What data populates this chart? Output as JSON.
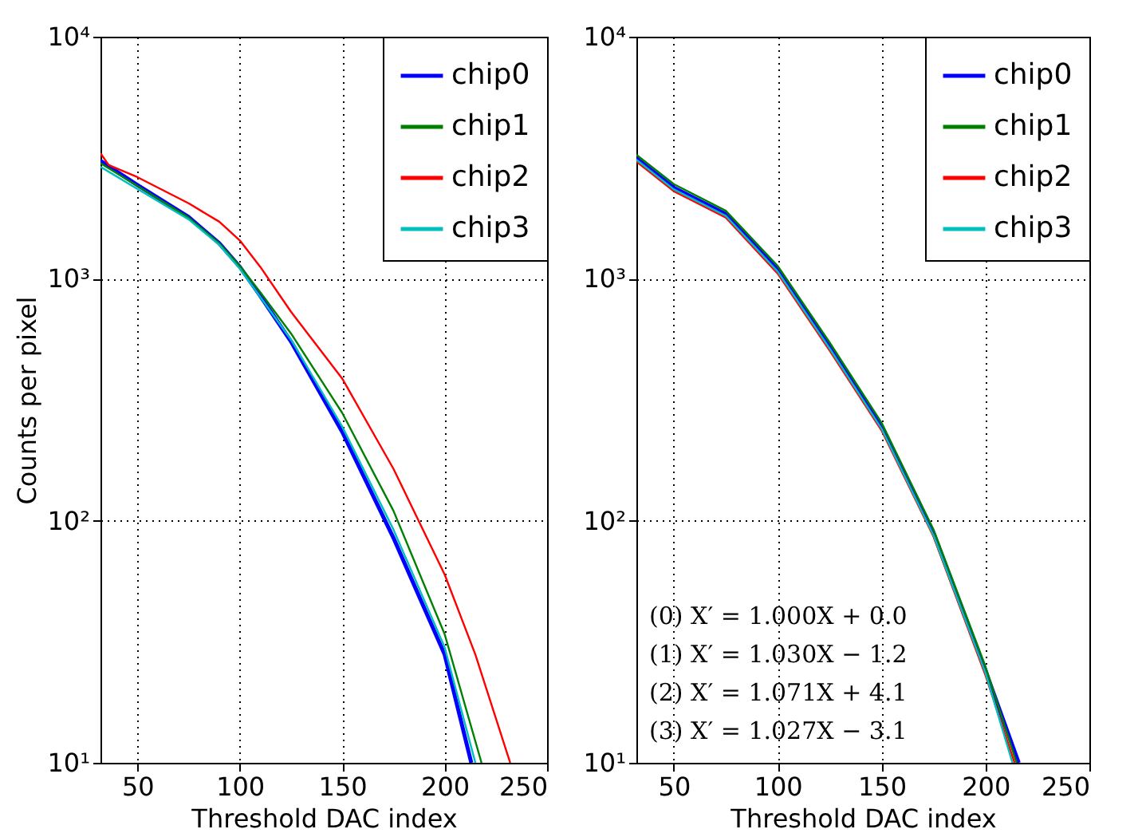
{
  "chart_data": [
    {
      "type": "line",
      "xlabel": "Threshold DAC index",
      "ylabel": "Counts per pixel",
      "log": "y",
      "grid": true,
      "legend": "top right",
      "xlim": [
        32,
        250
      ],
      "xticks": [
        50,
        100,
        150,
        200,
        250
      ],
      "ylim": [
        10,
        10000
      ],
      "yticks": [
        {
          "value": 10,
          "label": "10¹"
        },
        {
          "value": 100,
          "label": "10²"
        },
        {
          "value": 1000,
          "label": "10³"
        },
        {
          "value": 10000,
          "label": "10⁴"
        }
      ],
      "series": [
        {
          "name": "chip0",
          "color": "#0000ff",
          "x": [
            32,
            50,
            75,
            90,
            100,
            110,
            125,
            150,
            175,
            200,
            213
          ],
          "values": [
            3070,
            2440,
            1800,
            1400,
            1120,
            850,
            550,
            233,
            85,
            28,
            10
          ]
        },
        {
          "name": "chip1",
          "color": "#008000",
          "x": [
            32,
            50,
            75,
            90,
            100,
            110,
            125,
            150,
            175,
            200,
            218
          ],
          "values": [
            3000,
            2420,
            1790,
            1400,
            1130,
            880,
            594,
            279,
            110,
            34,
            10
          ]
        },
        {
          "name": "chip2",
          "color": "#ff0000",
          "x": [
            32,
            36,
            50,
            75,
            90,
            100,
            110,
            125,
            150,
            175,
            200,
            215,
            232
          ],
          "values": [
            3300,
            2950,
            2630,
            2050,
            1720,
            1440,
            1120,
            730,
            387,
            164,
            60,
            28,
            10
          ]
        },
        {
          "name": "chip3",
          "color": "#00bfbf",
          "x": [
            32,
            50,
            75,
            90,
            100,
            110,
            125,
            150,
            175,
            200,
            215
          ],
          "values": [
            2900,
            2350,
            1760,
            1380,
            1100,
            840,
            560,
            245,
            92,
            30,
            10
          ]
        }
      ]
    },
    {
      "type": "line",
      "xlabel": "Threshold DAC index",
      "log": "y",
      "grid": true,
      "legend": "top right",
      "xlim": [
        32,
        250
      ],
      "xticks": [
        50,
        100,
        150,
        200,
        250
      ],
      "ylim": [
        10,
        10000
      ],
      "yticks": [
        {
          "value": 10,
          "label": "10¹"
        },
        {
          "value": 100,
          "label": "10²"
        },
        {
          "value": 1000,
          "label": "10³"
        },
        {
          "value": 10000,
          "label": "10⁴"
        }
      ],
      "annotations": [
        "(0) X′ = 1.000X + 0.0",
        "(1) X′ = 1.030X − 1.2",
        "(2) X′ = 1.071X + 4.1",
        "(3) X′ = 1.027X − 3.1"
      ],
      "series": [
        {
          "name": "chip0",
          "color": "#0000ff",
          "x": [
            32,
            50,
            75,
            100,
            125,
            150,
            175,
            200,
            216
          ],
          "values": [
            3150,
            2380,
            1850,
            1090,
            525,
            245,
            89,
            24,
            10
          ]
        },
        {
          "name": "chip1",
          "color": "#008000",
          "x": [
            32,
            50,
            75,
            100,
            125,
            150,
            175,
            200,
            215
          ],
          "values": [
            3250,
            2460,
            1910,
            1130,
            545,
            254,
            92,
            25,
            10
          ]
        },
        {
          "name": "chip2",
          "color": "#ff0000",
          "x": [
            32,
            50,
            75,
            100,
            125,
            150,
            175,
            200,
            214
          ],
          "values": [
            3050,
            2300,
            1790,
            1050,
            505,
            236,
            86,
            23,
            10
          ]
        },
        {
          "name": "chip3",
          "color": "#00bfbf",
          "x": [
            32,
            50,
            75,
            100,
            125,
            150,
            175,
            200,
            213
          ],
          "values": [
            3100,
            2340,
            1820,
            1070,
            515,
            240,
            87,
            23.5,
            10
          ]
        }
      ]
    }
  ]
}
